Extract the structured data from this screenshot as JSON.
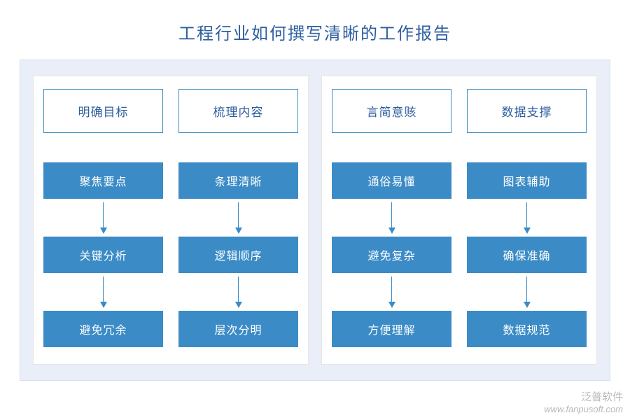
{
  "title": "工程行业如何撰写清晰的工作报告",
  "colors": {
    "title_text": "#2c5d9e",
    "outer_bg": "#e9eef8",
    "outer_border": "#d7dff0",
    "group_bg": "#ffffff",
    "group_border": "#e6e6e6",
    "head_border": "#3b8bc6",
    "head_text": "#2c5d9e",
    "step_bg": "#3b8bc6",
    "arrow": "#3b8bc6",
    "watermark": "#b8b8b8"
  },
  "groups": [
    {
      "columns": [
        {
          "head": "明确目标",
          "steps": [
            "聚焦要点",
            "关键分析",
            "避免冗余"
          ]
        },
        {
          "head": "梳理内容",
          "steps": [
            "条理清晰",
            "逻辑顺序",
            "层次分明"
          ]
        }
      ]
    },
    {
      "columns": [
        {
          "head": "言简意赅",
          "steps": [
            "通俗易懂",
            "避免复杂",
            "方便理解"
          ]
        },
        {
          "head": "数据支撑",
          "steps": [
            "图表辅助",
            "确保准确",
            "数据规范"
          ]
        }
      ]
    }
  ],
  "watermark": {
    "line1": "泛普软件",
    "line2": "www.fanpusoft.com"
  }
}
